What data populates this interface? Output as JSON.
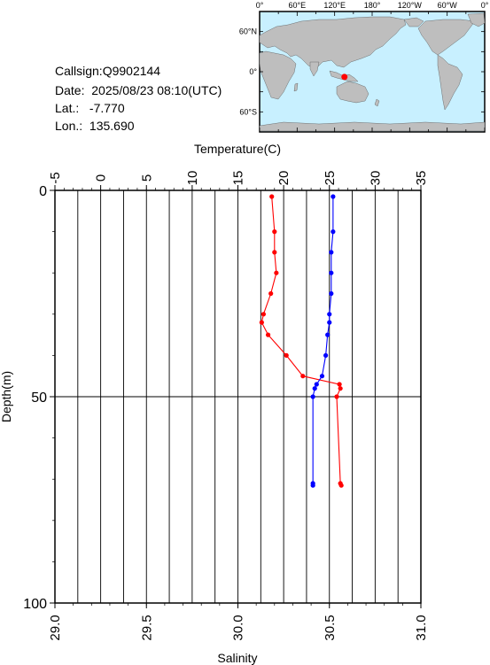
{
  "info": {
    "callsign": "Callsign:Q9902144",
    "date": "Date:  2025/08/23 08:10(UTC)",
    "lat": "Lat.:   -7.770",
    "lon": "Lon.:  135.690"
  },
  "map": {
    "top_labels": [
      "0°",
      "60°E",
      "120°E",
      "180°",
      "120°W",
      "60°W",
      "0°"
    ],
    "lat_labels": [
      "60°N",
      "0°",
      "60°S"
    ],
    "ocean_color": "#c8f0ff",
    "land_color": "#bebebe",
    "marker_color": "#ff0000",
    "marker": {
      "lon": 135.69,
      "lat": -7.77
    }
  },
  "chart_data": {
    "type": "line",
    "title": "",
    "xlabel_top": "Temperature(C)",
    "xlabel_bottom": "Salinity",
    "ylabel": "Depth(m)",
    "temperature_range": [
      -5,
      35
    ],
    "salinity_range": [
      29.0,
      31.0
    ],
    "depth_range": [
      0,
      100
    ],
    "temperature_ticks": [
      "-5",
      "0",
      "5",
      "10",
      "15",
      "20",
      "25",
      "30",
      "35"
    ],
    "salinity_ticks": [
      "29.0",
      "29.5",
      "30.0",
      "30.5",
      "31.0"
    ],
    "depth_ticks": [
      "0",
      "50",
      "100"
    ],
    "grid": true,
    "series": [
      {
        "variable": "temperature",
        "color": "#ff0000",
        "points": [
          {
            "depth": 1.5,
            "value": 18.7
          },
          {
            "depth": 10,
            "value": 19.0
          },
          {
            "depth": 15,
            "value": 19.0
          },
          {
            "depth": 20,
            "value": 19.2
          },
          {
            "depth": 25,
            "value": 18.6
          },
          {
            "depth": 30,
            "value": 17.8
          },
          {
            "depth": 32,
            "value": 17.6
          },
          {
            "depth": 35,
            "value": 18.3
          },
          {
            "depth": 40,
            "value": 20.3
          },
          {
            "depth": 45,
            "value": 22.1
          },
          {
            "depth": 47,
            "value": 26.1
          },
          {
            "depth": 48,
            "value": 26.2
          },
          {
            "depth": 50,
            "value": 25.8
          },
          {
            "depth": 71,
            "value": 26.2
          },
          {
            "depth": 71.5,
            "value": 26.3
          }
        ]
      },
      {
        "variable": "salinity",
        "color": "#0000ff",
        "points": [
          {
            "depth": 1.5,
            "value": 30.52
          },
          {
            "depth": 10,
            "value": 30.52
          },
          {
            "depth": 15,
            "value": 30.51
          },
          {
            "depth": 20,
            "value": 30.51
          },
          {
            "depth": 25,
            "value": 30.51
          },
          {
            "depth": 30,
            "value": 30.5
          },
          {
            "depth": 32,
            "value": 30.5
          },
          {
            "depth": 35,
            "value": 30.49
          },
          {
            "depth": 40,
            "value": 30.48
          },
          {
            "depth": 45,
            "value": 30.46
          },
          {
            "depth": 47,
            "value": 30.43
          },
          {
            "depth": 48,
            "value": 30.42
          },
          {
            "depth": 50,
            "value": 30.41
          },
          {
            "depth": 71,
            "value": 30.41
          },
          {
            "depth": 71.5,
            "value": 30.41
          }
        ]
      }
    ]
  }
}
